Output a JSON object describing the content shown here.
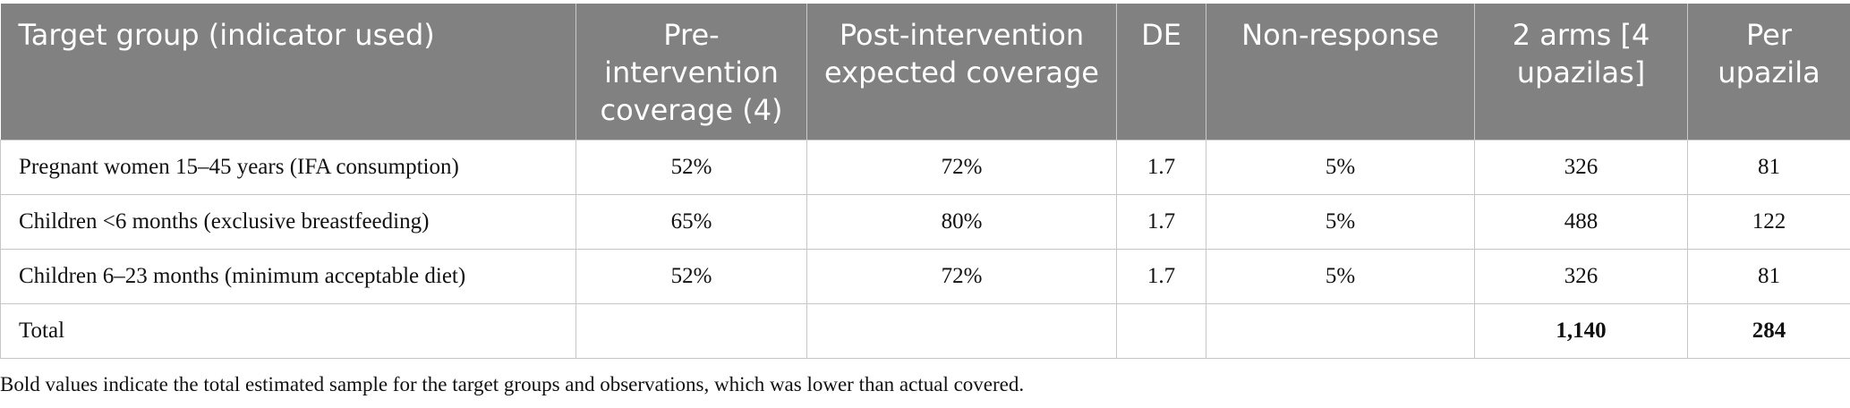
{
  "table": {
    "headers": [
      "Target group (indicator used)",
      "Pre-intervention coverage (4)",
      "Post-intervention expected coverage",
      "DE",
      "Non-response",
      "2 arms [4 upazilas]",
      "Per upazila"
    ],
    "rows": [
      [
        "Pregnant women 15–45 years (IFA consumption)",
        "52%",
        "72%",
        "1.7",
        "5%",
        "326",
        "81"
      ],
      [
        "Children <6 months (exclusive breastfeeding)",
        "65%",
        "80%",
        "1.7",
        "5%",
        "488",
        "122"
      ],
      [
        "Children 6–23 months (minimum acceptable diet)",
        "52%",
        "72%",
        "1.7",
        "5%",
        "326",
        "81"
      ],
      [
        "Total",
        "",
        "",
        "",
        "",
        "1,140",
        "284"
      ]
    ]
  },
  "footnote": "Bold values indicate the total estimated sample for the target groups and observations, which was lower than actual covered."
}
